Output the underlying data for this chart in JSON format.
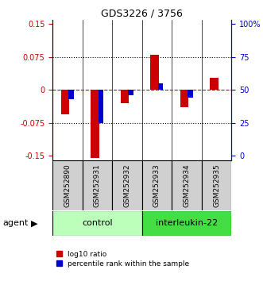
{
  "title": "GDS3226 / 3756",
  "samples": [
    "GSM252890",
    "GSM252931",
    "GSM252932",
    "GSM252933",
    "GSM252934",
    "GSM252935"
  ],
  "log10_ratio": [
    -0.055,
    -0.155,
    -0.03,
    0.08,
    -0.04,
    0.028
  ],
  "percentile_rank_raw": [
    43,
    25,
    46,
    55,
    44,
    50
  ],
  "ylim": [
    -0.16,
    0.16
  ],
  "left_yticks": [
    -0.15,
    -0.075,
    0.0,
    0.075,
    0.15
  ],
  "left_ytick_labels": [
    "-0.15",
    "-0.075",
    "0",
    "0.075",
    "0.15"
  ],
  "right_yticks": [
    0,
    25,
    50,
    75,
    100
  ],
  "right_ytick_labels": [
    "0",
    "25",
    "50",
    "75",
    "100%"
  ],
  "red_color": "#cc0000",
  "blue_color": "#0000cc",
  "control_color": "#bbffbb",
  "interleukin_color": "#44dd44",
  "gray_color": "#d0d0d0",
  "agent_label": "agent",
  "control_label": "control",
  "interleukin_label": "interleukin-22",
  "legend_red": "log10 ratio",
  "legend_blue": "percentile rank within the sample",
  "control_indices": [
    0,
    1,
    2
  ],
  "interleukin_indices": [
    3,
    4,
    5
  ]
}
